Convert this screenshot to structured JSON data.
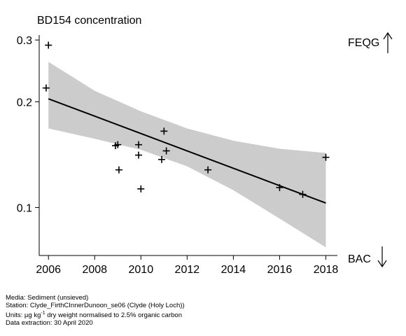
{
  "chart_data": {
    "type": "scatter",
    "title": "BD154 concentration",
    "xlabel": "",
    "ylabel": "",
    "x_ticks": [
      "2006",
      "2008",
      "2010",
      "2012",
      "2014",
      "2016",
      "2018"
    ],
    "y_ticks": [
      "0.1",
      "0.2",
      "0.3"
    ],
    "y_scale": "log",
    "xlim": [
      2005.6,
      2018.5
    ],
    "ylim": [
      0.073,
      0.31
    ],
    "grid": false,
    "points": [
      {
        "x": 2006.0,
        "y": 0.29
      },
      {
        "x": 2005.9,
        "y": 0.219
      },
      {
        "x": 2008.9,
        "y": 0.15
      },
      {
        "x": 2009.0,
        "y": 0.151
      },
      {
        "x": 2009.05,
        "y": 0.128
      },
      {
        "x": 2009.9,
        "y": 0.151
      },
      {
        "x": 2009.9,
        "y": 0.141
      },
      {
        "x": 2010.0,
        "y": 0.113
      },
      {
        "x": 2010.9,
        "y": 0.137
      },
      {
        "x": 2011.0,
        "y": 0.165
      },
      {
        "x": 2011.1,
        "y": 0.145
      },
      {
        "x": 2012.9,
        "y": 0.128
      },
      {
        "x": 2016.0,
        "y": 0.114
      },
      {
        "x": 2017.0,
        "y": 0.109
      },
      {
        "x": 2018.0,
        "y": 0.139
      }
    ],
    "trend": {
      "x": [
        2006,
        2018
      ],
      "y": [
        0.204,
        0.103
      ]
    },
    "confidence_band": {
      "x": [
        2006,
        2008,
        2010,
        2012,
        2014,
        2016,
        2018
      ],
      "upper": [
        0.26,
        0.215,
        0.188,
        0.168,
        0.155,
        0.147,
        0.143
      ],
      "lower": [
        0.168,
        0.157,
        0.146,
        0.131,
        0.112,
        0.093,
        0.077
      ]
    },
    "thresholds": [
      {
        "label": "FEQG",
        "direction": "up"
      },
      {
        "label": "BAC",
        "direction": "down"
      }
    ],
    "colors": {
      "band": "#cccccc",
      "line": "#000000",
      "points": "#000000"
    }
  },
  "footer": {
    "media": "Media: Sediment (unsieved)",
    "station": "Station: Clyde_FirthCInnerDunoon_se06 (Clyde (Holy Loch))",
    "units_prefix": "Units: µg kg",
    "units_sup": "-1",
    "units_suffix": " dry weight normalised to 2.5% organic carbon",
    "extraction": "Data extraction: 30 April 2020"
  }
}
